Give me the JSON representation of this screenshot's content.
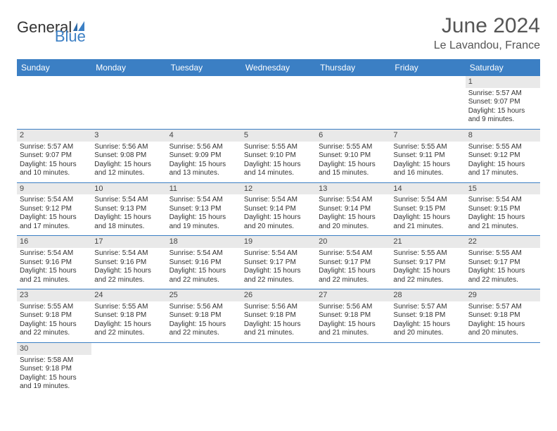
{
  "brand": {
    "name_part1": "General",
    "name_part2": "Blue",
    "accent_color": "#3b7fc4"
  },
  "header": {
    "month_title": "June 2024",
    "location": "Le Lavandou, France"
  },
  "calendar": {
    "type": "table",
    "columns": [
      "Sunday",
      "Monday",
      "Tuesday",
      "Wednesday",
      "Thursday",
      "Friday",
      "Saturday"
    ],
    "header_bg": "#3b7fc4",
    "header_text_color": "#ffffff",
    "daynum_bg": "#e9e9e9",
    "row_border_color": "#3b7fc4",
    "cell_fontsize": 10,
    "weeks": [
      [
        null,
        null,
        null,
        null,
        null,
        null,
        {
          "n": "1",
          "sunrise": "Sunrise: 5:57 AM",
          "sunset": "Sunset: 9:07 PM",
          "daylight": "Daylight: 15 hours and 9 minutes."
        }
      ],
      [
        {
          "n": "2",
          "sunrise": "Sunrise: 5:57 AM",
          "sunset": "Sunset: 9:07 PM",
          "daylight": "Daylight: 15 hours and 10 minutes."
        },
        {
          "n": "3",
          "sunrise": "Sunrise: 5:56 AM",
          "sunset": "Sunset: 9:08 PM",
          "daylight": "Daylight: 15 hours and 12 minutes."
        },
        {
          "n": "4",
          "sunrise": "Sunrise: 5:56 AM",
          "sunset": "Sunset: 9:09 PM",
          "daylight": "Daylight: 15 hours and 13 minutes."
        },
        {
          "n": "5",
          "sunrise": "Sunrise: 5:55 AM",
          "sunset": "Sunset: 9:10 PM",
          "daylight": "Daylight: 15 hours and 14 minutes."
        },
        {
          "n": "6",
          "sunrise": "Sunrise: 5:55 AM",
          "sunset": "Sunset: 9:10 PM",
          "daylight": "Daylight: 15 hours and 15 minutes."
        },
        {
          "n": "7",
          "sunrise": "Sunrise: 5:55 AM",
          "sunset": "Sunset: 9:11 PM",
          "daylight": "Daylight: 15 hours and 16 minutes."
        },
        {
          "n": "8",
          "sunrise": "Sunrise: 5:55 AM",
          "sunset": "Sunset: 9:12 PM",
          "daylight": "Daylight: 15 hours and 17 minutes."
        }
      ],
      [
        {
          "n": "9",
          "sunrise": "Sunrise: 5:54 AM",
          "sunset": "Sunset: 9:12 PM",
          "daylight": "Daylight: 15 hours and 17 minutes."
        },
        {
          "n": "10",
          "sunrise": "Sunrise: 5:54 AM",
          "sunset": "Sunset: 9:13 PM",
          "daylight": "Daylight: 15 hours and 18 minutes."
        },
        {
          "n": "11",
          "sunrise": "Sunrise: 5:54 AM",
          "sunset": "Sunset: 9:13 PM",
          "daylight": "Daylight: 15 hours and 19 minutes."
        },
        {
          "n": "12",
          "sunrise": "Sunrise: 5:54 AM",
          "sunset": "Sunset: 9:14 PM",
          "daylight": "Daylight: 15 hours and 20 minutes."
        },
        {
          "n": "13",
          "sunrise": "Sunrise: 5:54 AM",
          "sunset": "Sunset: 9:14 PM",
          "daylight": "Daylight: 15 hours and 20 minutes."
        },
        {
          "n": "14",
          "sunrise": "Sunrise: 5:54 AM",
          "sunset": "Sunset: 9:15 PM",
          "daylight": "Daylight: 15 hours and 21 minutes."
        },
        {
          "n": "15",
          "sunrise": "Sunrise: 5:54 AM",
          "sunset": "Sunset: 9:15 PM",
          "daylight": "Daylight: 15 hours and 21 minutes."
        }
      ],
      [
        {
          "n": "16",
          "sunrise": "Sunrise: 5:54 AM",
          "sunset": "Sunset: 9:16 PM",
          "daylight": "Daylight: 15 hours and 21 minutes."
        },
        {
          "n": "17",
          "sunrise": "Sunrise: 5:54 AM",
          "sunset": "Sunset: 9:16 PM",
          "daylight": "Daylight: 15 hours and 22 minutes."
        },
        {
          "n": "18",
          "sunrise": "Sunrise: 5:54 AM",
          "sunset": "Sunset: 9:16 PM",
          "daylight": "Daylight: 15 hours and 22 minutes."
        },
        {
          "n": "19",
          "sunrise": "Sunrise: 5:54 AM",
          "sunset": "Sunset: 9:17 PM",
          "daylight": "Daylight: 15 hours and 22 minutes."
        },
        {
          "n": "20",
          "sunrise": "Sunrise: 5:54 AM",
          "sunset": "Sunset: 9:17 PM",
          "daylight": "Daylight: 15 hours and 22 minutes."
        },
        {
          "n": "21",
          "sunrise": "Sunrise: 5:55 AM",
          "sunset": "Sunset: 9:17 PM",
          "daylight": "Daylight: 15 hours and 22 minutes."
        },
        {
          "n": "22",
          "sunrise": "Sunrise: 5:55 AM",
          "sunset": "Sunset: 9:17 PM",
          "daylight": "Daylight: 15 hours and 22 minutes."
        }
      ],
      [
        {
          "n": "23",
          "sunrise": "Sunrise: 5:55 AM",
          "sunset": "Sunset: 9:18 PM",
          "daylight": "Daylight: 15 hours and 22 minutes."
        },
        {
          "n": "24",
          "sunrise": "Sunrise: 5:55 AM",
          "sunset": "Sunset: 9:18 PM",
          "daylight": "Daylight: 15 hours and 22 minutes."
        },
        {
          "n": "25",
          "sunrise": "Sunrise: 5:56 AM",
          "sunset": "Sunset: 9:18 PM",
          "daylight": "Daylight: 15 hours and 22 minutes."
        },
        {
          "n": "26",
          "sunrise": "Sunrise: 5:56 AM",
          "sunset": "Sunset: 9:18 PM",
          "daylight": "Daylight: 15 hours and 21 minutes."
        },
        {
          "n": "27",
          "sunrise": "Sunrise: 5:56 AM",
          "sunset": "Sunset: 9:18 PM",
          "daylight": "Daylight: 15 hours and 21 minutes."
        },
        {
          "n": "28",
          "sunrise": "Sunrise: 5:57 AM",
          "sunset": "Sunset: 9:18 PM",
          "daylight": "Daylight: 15 hours and 20 minutes."
        },
        {
          "n": "29",
          "sunrise": "Sunrise: 5:57 AM",
          "sunset": "Sunset: 9:18 PM",
          "daylight": "Daylight: 15 hours and 20 minutes."
        }
      ],
      [
        {
          "n": "30",
          "sunrise": "Sunrise: 5:58 AM",
          "sunset": "Sunset: 9:18 PM",
          "daylight": "Daylight: 15 hours and 19 minutes."
        },
        null,
        null,
        null,
        null,
        null,
        null
      ]
    ]
  }
}
